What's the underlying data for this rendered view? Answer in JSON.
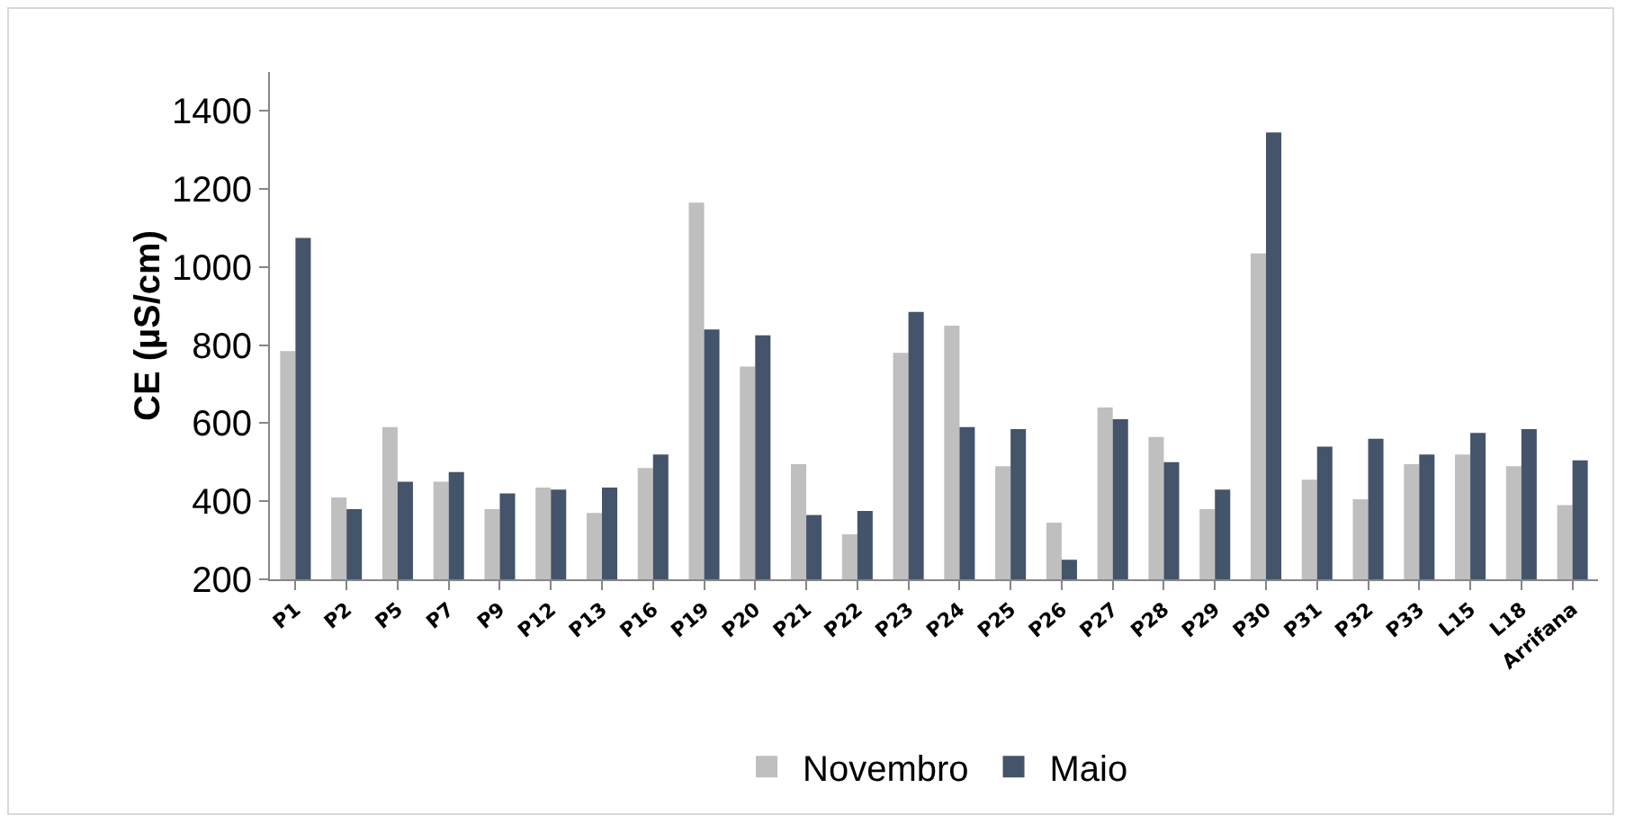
{
  "chart_data": {
    "type": "bar",
    "ylabel": "CE (µS/cm)",
    "categories": [
      "P1",
      "P2",
      "P5",
      "P7",
      "P9",
      "P12",
      "P13",
      "P16",
      "P19",
      "P20",
      "P21",
      "P22",
      "P23",
      "P24",
      "P25",
      "P26",
      "P27",
      "P28",
      "P29",
      "P30",
      "P31",
      "P32",
      "P33",
      "L15",
      "L18",
      "Arrifana"
    ],
    "series": [
      {
        "name": "Novembro",
        "color": "#bfbfbf",
        "values": [
          785,
          410,
          590,
          450,
          380,
          435,
          370,
          485,
          1165,
          745,
          495,
          315,
          780,
          850,
          490,
          345,
          640,
          565,
          380,
          1035,
          455,
          405,
          495,
          520,
          490,
          390
        ]
      },
      {
        "name": "Maio",
        "color": "#44546a",
        "values": [
          1075,
          380,
          450,
          475,
          420,
          430,
          435,
          520,
          840,
          825,
          365,
          375,
          885,
          590,
          585,
          250,
          610,
          500,
          430,
          1345,
          540,
          560,
          520,
          575,
          585,
          505
        ]
      }
    ],
    "ylim": [
      200,
      1500
    ],
    "yticks": [
      200,
      400,
      600,
      800,
      1000,
      1200,
      1400
    ],
    "grid": false,
    "legend": "bottom"
  }
}
